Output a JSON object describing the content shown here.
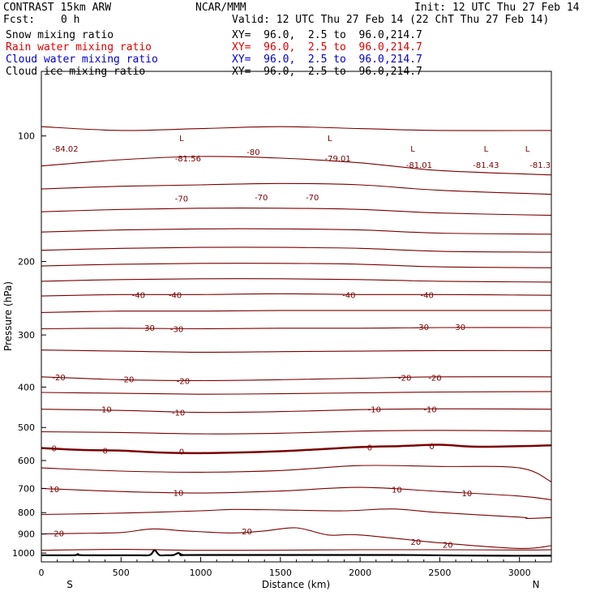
{
  "header": {
    "title": "CONTRAST 15km ARW",
    "center": "NCAR/MMM",
    "init": "Init: 12 UTC Thu 27 Feb 14",
    "fcst_label": "Fcst:",
    "fcst_value": "0 h",
    "valid": "Valid: 12 UTC Thu 27 Feb 14 (22 ChT Thu 27 Feb 14)"
  },
  "fields": [
    {
      "name": "Snow mixing ratio",
      "xy": "XY=  96.0,  2.5 to  96.0,214.7",
      "color": "#000000"
    },
    {
      "name": "Rain water mixing ratio",
      "xy": "XY=  96.0,  2.5 to  96.0,214.7",
      "color": "#e00000"
    },
    {
      "name": "Cloud water mixing ratio",
      "xy": "XY=  96.0,  2.5 to  96.0,214.7",
      "color": "#0000cc"
    },
    {
      "name": "Cloud ice mixing ratio",
      "xy": "XY=  96.0,  2.5 to  96.0,214.7",
      "color": "#000000"
    }
  ],
  "colors": {
    "contour": "#7a0000",
    "terrain": "#000000"
  },
  "chart_data": {
    "type": "contour",
    "xlabel": "Distance (km)",
    "ylabel": "Pressure (hPa)",
    "xlim": [
      0,
      3200
    ],
    "ylim": [
      1050,
      70
    ],
    "y_scale": "log",
    "x_ticks": [
      "0",
      "500",
      "1000",
      "1500",
      "2000",
      "2500",
      "3000"
    ],
    "y_ticks": [
      "100",
      "200",
      "300",
      "400",
      "500",
      "600",
      "700",
      "800",
      "900",
      "1000"
    ],
    "x_end_labels": {
      "left": "S",
      "right": "N"
    },
    "contour_labels": [
      {
        "text": "-84.02",
        "x": 150,
        "p": 107
      },
      {
        "text": "L",
        "x": 880,
        "p": 101
      },
      {
        "text": "-81.56",
        "x": 920,
        "p": 113
      },
      {
        "text": "-80",
        "x": 1330,
        "p": 109
      },
      {
        "text": "L",
        "x": 1810,
        "p": 101
      },
      {
        "text": "-79.01",
        "x": 1860,
        "p": 113
      },
      {
        "text": "L",
        "x": 2330,
        "p": 107
      },
      {
        "text": "-81.01",
        "x": 2370,
        "p": 117
      },
      {
        "text": "L",
        "x": 2790,
        "p": 107
      },
      {
        "text": "-81.43",
        "x": 2790,
        "p": 117
      },
      {
        "text": "L",
        "x": 3050,
        "p": 107
      },
      {
        "text": "-81.3",
        "x": 3130,
        "p": 117
      },
      {
        "text": "-70",
        "x": 880,
        "p": 141
      },
      {
        "text": "-70",
        "x": 1380,
        "p": 140
      },
      {
        "text": "-70",
        "x": 1700,
        "p": 140
      },
      {
        "text": "-40",
        "x": 610,
        "p": 240
      },
      {
        "text": "-40",
        "x": 840,
        "p": 240
      },
      {
        "text": "-40",
        "x": 1930,
        "p": 240
      },
      {
        "text": "-40",
        "x": 2420,
        "p": 240
      },
      {
        "text": "-30",
        "x": 670,
        "p": 288
      },
      {
        "text": "-30",
        "x": 850,
        "p": 290
      },
      {
        "text": "-30",
        "x": 2390,
        "p": 287
      },
      {
        "text": "-30",
        "x": 2620,
        "p": 287
      },
      {
        "text": "-20",
        "x": 110,
        "p": 378
      },
      {
        "text": "-20",
        "x": 540,
        "p": 383
      },
      {
        "text": "-20",
        "x": 890,
        "p": 386
      },
      {
        "text": "-20",
        "x": 2280,
        "p": 379
      },
      {
        "text": "-20",
        "x": 2470,
        "p": 379
      },
      {
        "text": "-10",
        "x": 400,
        "p": 452
      },
      {
        "text": "-10",
        "x": 860,
        "p": 460
      },
      {
        "text": "-10",
        "x": 2090,
        "p": 452
      },
      {
        "text": "-10",
        "x": 2440,
        "p": 452
      },
      {
        "text": "0",
        "x": 80,
        "p": 560
      },
      {
        "text": "0",
        "x": 400,
        "p": 567
      },
      {
        "text": "0",
        "x": 880,
        "p": 570
      },
      {
        "text": "0",
        "x": 2060,
        "p": 557
      },
      {
        "text": "0",
        "x": 2450,
        "p": 553
      },
      {
        "text": "10",
        "x": 80,
        "p": 702
      },
      {
        "text": "10",
        "x": 860,
        "p": 716
      },
      {
        "text": "10",
        "x": 2230,
        "p": 703
      },
      {
        "text": "10",
        "x": 2670,
        "p": 718
      },
      {
        "text": "20",
        "x": 110,
        "p": 896
      },
      {
        "text": "20",
        "x": 1290,
        "p": 885
      },
      {
        "text": "20",
        "x": 2350,
        "p": 938
      },
      {
        "text": "20",
        "x": 2550,
        "p": 953
      }
    ],
    "isotherms": [
      {
        "value": -80,
        "x": [
          0,
          500,
          1000,
          1500,
          2000,
          2500,
          3200
        ],
        "p": [
          95,
          97,
          96,
          95,
          96,
          97,
          97
        ]
      },
      {
        "value": -75,
        "x": [
          0,
          500,
          1000,
          1500,
          2000,
          2500,
          3200
        ],
        "p": [
          118,
          114,
          112,
          113,
          116,
          121,
          124
        ]
      },
      {
        "value": -70,
        "x": [
          0,
          500,
          1000,
          1500,
          2000,
          2500,
          3200
        ],
        "p": [
          134,
          132,
          131,
          130,
          131,
          135,
          138
        ]
      },
      {
        "value": -65,
        "x": [
          0,
          500,
          1000,
          1500,
          2000,
          2500,
          3200
        ],
        "p": [
          152,
          150,
          149,
          149,
          150,
          153,
          155
        ]
      },
      {
        "value": -60,
        "x": [
          0,
          500,
          1000,
          1500,
          2000,
          2500,
          3200
        ],
        "p": [
          170,
          168,
          167,
          167,
          168,
          171,
          172
        ]
      },
      {
        "value": -55,
        "x": [
          0,
          500,
          1000,
          1500,
          2000,
          2500,
          3200
        ],
        "p": [
          188,
          186,
          185,
          185,
          186,
          189,
          190
        ]
      },
      {
        "value": -50,
        "x": [
          0,
          500,
          1000,
          1500,
          2000,
          2500,
          3200
        ],
        "p": [
          205,
          203,
          202,
          202,
          203,
          206,
          207
        ]
      },
      {
        "value": -45,
        "x": [
          0,
          500,
          1000,
          1500,
          2000,
          2500,
          3200
        ],
        "p": [
          223,
          221,
          220,
          220,
          221,
          223,
          224
        ]
      },
      {
        "value": -40,
        "x": [
          0,
          500,
          1000,
          1500,
          2000,
          2500,
          3200
        ],
        "p": [
          242,
          240,
          240,
          239,
          240,
          240,
          241
        ]
      },
      {
        "value": -35,
        "x": [
          0,
          500,
          1000,
          1500,
          2000,
          2500,
          3200
        ],
        "p": [
          265,
          263,
          263,
          262,
          262,
          262,
          262
        ]
      },
      {
        "value": -30,
        "x": [
          0,
          500,
          1000,
          1500,
          2000,
          2500,
          3200
        ],
        "p": [
          290,
          289,
          290,
          289,
          289,
          288,
          288
        ]
      },
      {
        "value": -25,
        "x": [
          0,
          500,
          1000,
          1500,
          2000,
          2500,
          3200
        ],
        "p": [
          326,
          328,
          330,
          329,
          328,
          327,
          327
        ]
      },
      {
        "value": -20,
        "x": [
          0,
          500,
          1000,
          1500,
          2000,
          2500,
          3200
        ],
        "p": [
          378,
          384,
          386,
          384,
          381,
          378,
          378
        ]
      },
      {
        "value": -15,
        "x": [
          0,
          500,
          1000,
          1500,
          2000,
          2500,
          3200
        ],
        "p": [
          412,
          414,
          416,
          415,
          413,
          411,
          410
        ]
      },
      {
        "value": -10,
        "x": [
          0,
          500,
          1000,
          1500,
          2000,
          2500,
          3200
        ],
        "p": [
          452,
          455,
          460,
          458,
          453,
          451,
          452
        ]
      },
      {
        "value": -5,
        "x": [
          0,
          500,
          1000,
          1500,
          2000,
          2500,
          3200
        ],
        "p": [
          512,
          514,
          518,
          516,
          510,
          508,
          510
        ]
      },
      {
        "value": 0,
        "x": [
          0,
          250,
          500,
          750,
          1000,
          1500,
          2000,
          2250,
          2500,
          2750,
          3200
        ],
        "p": [
          560,
          566,
          568,
          574,
          576,
          570,
          557,
          554,
          550,
          556,
          552
        ]
      },
      {
        "value": 5,
        "x": [
          0,
          500,
          1000,
          1500,
          2000,
          2500,
          3000,
          3200
        ],
        "p": [
          625,
          636,
          640,
          634,
          617,
          620,
          625,
          675
        ]
      },
      {
        "value": 10,
        "x": [
          0,
          500,
          1000,
          1500,
          2000,
          2500,
          3000,
          3200
        ],
        "p": [
          700,
          712,
          718,
          710,
          696,
          712,
          730,
          745
        ]
      },
      {
        "value": 15,
        "x": [
          0,
          500,
          1000,
          1200,
          1500,
          1900,
          2200,
          2500,
          3000,
          3050,
          3200
        ],
        "p": [
          808,
          802,
          792,
          786,
          788,
          792,
          784,
          800,
          820,
          826,
          822
        ]
      },
      {
        "value": 20,
        "x": [
          0,
          250,
          500,
          700,
          900,
          1200,
          1400,
          1600,
          1800,
          2000,
          2500,
          3000,
          3200
        ],
        "p": [
          900,
          897,
          893,
          875,
          885,
          895,
          885,
          870,
          905,
          905,
          945,
          975,
          960
        ]
      },
      {
        "value": 25,
        "x": [
          0,
          500,
          1000,
          1500,
          2000,
          2500,
          3000,
          3200
        ],
        "p": [
          985,
          980,
          985,
          984,
          982,
          982,
          983,
          982
        ]
      }
    ],
    "terrain": {
      "x": [
        0,
        200,
        230,
        260,
        600,
        680,
        710,
        740,
        780,
        830,
        860,
        890,
        1000,
        2200,
        2550,
        2900,
        3200
      ],
      "p": [
        1012,
        1012,
        1006,
        1012,
        1012,
        1011,
        985,
        1011,
        1012,
        1011,
        1000,
        1011,
        1011,
        1011,
        1013,
        1015,
        1015
      ]
    }
  }
}
